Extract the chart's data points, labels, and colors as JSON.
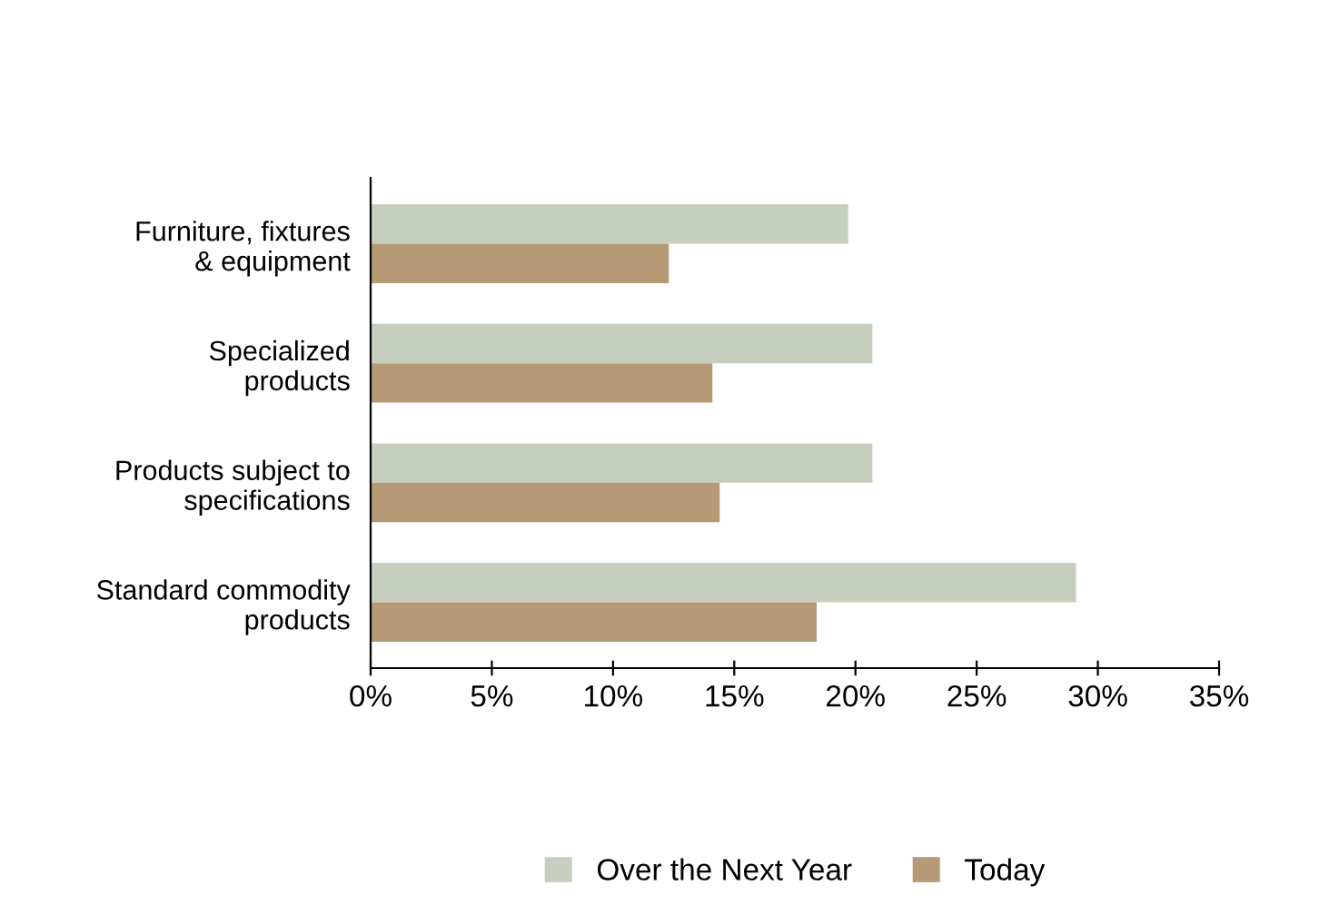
{
  "chart_data": {
    "type": "bar",
    "orientation": "horizontal",
    "categories": [
      "Furniture, fixtures\n& equipment",
      "Specialized\nproducts",
      "Products subject to\nspecifications",
      "Standard commodity\nproducts"
    ],
    "series": [
      {
        "name": "Over the Next Year",
        "color": "#c6cfbd",
        "values": [
          19.7,
          20.7,
          20.7,
          29.1
        ]
      },
      {
        "name": "Today",
        "color": "#b69a75",
        "values": [
          12.3,
          14.1,
          14.4,
          18.4
        ]
      }
    ],
    "xlim": [
      0,
      35
    ],
    "xticks": [
      {
        "value": 0,
        "label": "0%"
      },
      {
        "value": 5,
        "label": "5%"
      },
      {
        "value": 10,
        "label": "10%"
      },
      {
        "value": 15,
        "label": "15%"
      },
      {
        "value": 20,
        "label": "20%"
      },
      {
        "value": 25,
        "label": "25%"
      },
      {
        "value": 30,
        "label": "30%"
      },
      {
        "value": 35,
        "label": "35%"
      }
    ],
    "grid": false,
    "legend": "bottom"
  }
}
